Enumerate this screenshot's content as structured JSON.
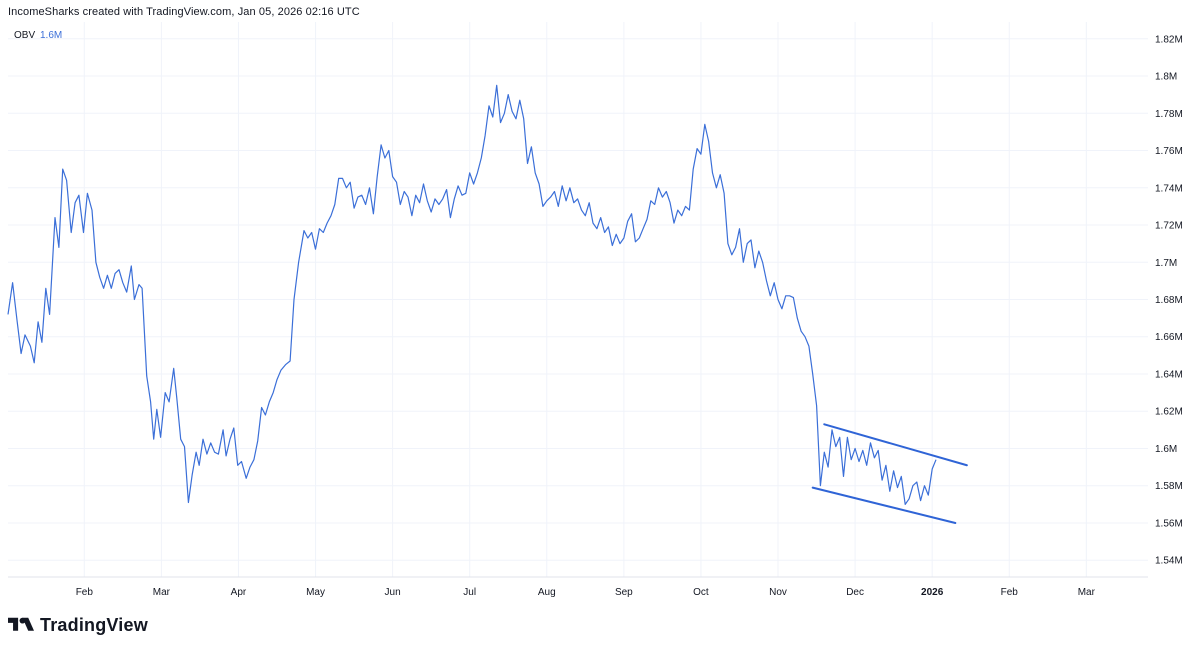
{
  "attribution": "IncomeSharks created with TradingView.com, Jan 05, 2026 02:16 UTC",
  "brand": "TradingView",
  "icons": {
    "logo": "tradingview-logo-icon"
  },
  "colors": {
    "line": "#3b6fd8",
    "trendline": "#2f64d6",
    "grid": "#f0f3fa",
    "text": "#131722",
    "legend_value": "#3b6fd8"
  },
  "chart_data": {
    "type": "line",
    "indicator": "OBV",
    "indicator_value": "1.6M",
    "y_ticks": [
      "1.54M",
      "1.56M",
      "1.58M",
      "1.6M",
      "1.62M",
      "1.64M",
      "1.66M",
      "1.68M",
      "1.7M",
      "1.72M",
      "1.74M",
      "1.76M",
      "1.78M",
      "1.8M",
      "1.82M"
    ],
    "y_tick_values": [
      1.54,
      1.56,
      1.58,
      1.6,
      1.62,
      1.64,
      1.66,
      1.68,
      1.7,
      1.72,
      1.74,
      1.76,
      1.78,
      1.8,
      1.82
    ],
    "ylim": [
      1.531,
      1.829
    ],
    "x_unit": "months since Jan 1, 2025",
    "xlim": [
      0.01,
      14.8
    ],
    "x_ticks": [
      {
        "label": "Feb",
        "pos": 1.0,
        "bold": false
      },
      {
        "label": "Mar",
        "pos": 2.0,
        "bold": false
      },
      {
        "label": "Apr",
        "pos": 3.0,
        "bold": false
      },
      {
        "label": "May",
        "pos": 4.0,
        "bold": false
      },
      {
        "label": "Jun",
        "pos": 5.0,
        "bold": false
      },
      {
        "label": "Jul",
        "pos": 6.0,
        "bold": false
      },
      {
        "label": "Aug",
        "pos": 7.0,
        "bold": false
      },
      {
        "label": "Sep",
        "pos": 8.0,
        "bold": false
      },
      {
        "label": "Oct",
        "pos": 9.0,
        "bold": false
      },
      {
        "label": "Nov",
        "pos": 10.0,
        "bold": false
      },
      {
        "label": "Dec",
        "pos": 11.0,
        "bold": false
      },
      {
        "label": "2026",
        "pos": 12.0,
        "bold": true
      },
      {
        "label": "Feb",
        "pos": 13.0,
        "bold": false
      },
      {
        "label": "Mar",
        "pos": 14.0,
        "bold": false
      }
    ],
    "series": [
      {
        "name": "OBV",
        "points": [
          [
            0.01,
            1.672
          ],
          [
            0.07,
            1.689
          ],
          [
            0.13,
            1.668
          ],
          [
            0.18,
            1.651
          ],
          [
            0.23,
            1.661
          ],
          [
            0.3,
            1.655
          ],
          [
            0.35,
            1.646
          ],
          [
            0.4,
            1.668
          ],
          [
            0.45,
            1.657
          ],
          [
            0.5,
            1.686
          ],
          [
            0.55,
            1.672
          ],
          [
            0.62,
            1.724
          ],
          [
            0.67,
            1.708
          ],
          [
            0.72,
            1.75
          ],
          [
            0.77,
            1.744
          ],
          [
            0.83,
            1.716
          ],
          [
            0.88,
            1.732
          ],
          [
            0.93,
            1.736
          ],
          [
            0.99,
            1.716
          ],
          [
            1.04,
            1.737
          ],
          [
            1.1,
            1.728
          ],
          [
            1.15,
            1.7
          ],
          [
            1.2,
            1.692
          ],
          [
            1.25,
            1.686
          ],
          [
            1.3,
            1.693
          ],
          [
            1.35,
            1.686
          ],
          [
            1.4,
            1.694
          ],
          [
            1.45,
            1.696
          ],
          [
            1.5,
            1.689
          ],
          [
            1.55,
            1.684
          ],
          [
            1.61,
            1.698
          ],
          [
            1.65,
            1.68
          ],
          [
            1.71,
            1.688
          ],
          [
            1.75,
            1.686
          ],
          [
            1.81,
            1.639
          ],
          [
            1.86,
            1.625
          ],
          [
            1.9,
            1.605
          ],
          [
            1.94,
            1.621
          ],
          [
            1.99,
            1.606
          ],
          [
            2.05,
            1.63
          ],
          [
            2.1,
            1.625
          ],
          [
            2.16,
            1.643
          ],
          [
            2.2,
            1.627
          ],
          [
            2.25,
            1.605
          ],
          [
            2.3,
            1.601
          ],
          [
            2.35,
            1.571
          ],
          [
            2.4,
            1.586
          ],
          [
            2.45,
            1.598
          ],
          [
            2.49,
            1.591
          ],
          [
            2.54,
            1.605
          ],
          [
            2.59,
            1.597
          ],
          [
            2.64,
            1.603
          ],
          [
            2.69,
            1.598
          ],
          [
            2.74,
            1.597
          ],
          [
            2.8,
            1.61
          ],
          [
            2.84,
            1.596
          ],
          [
            2.89,
            1.605
          ],
          [
            2.94,
            1.611
          ],
          [
            2.99,
            1.591
          ],
          [
            3.04,
            1.593
          ],
          [
            3.1,
            1.584
          ],
          [
            3.15,
            1.59
          ],
          [
            3.2,
            1.594
          ],
          [
            3.25,
            1.604
          ],
          [
            3.3,
            1.622
          ],
          [
            3.35,
            1.618
          ],
          [
            3.4,
            1.625
          ],
          [
            3.45,
            1.63
          ],
          [
            3.5,
            1.637
          ],
          [
            3.55,
            1.642
          ],
          [
            3.61,
            1.645
          ],
          [
            3.67,
            1.647
          ],
          [
            3.72,
            1.68
          ],
          [
            3.78,
            1.7
          ],
          [
            3.85,
            1.717
          ],
          [
            3.9,
            1.713
          ],
          [
            3.95,
            1.716
          ],
          [
            4.0,
            1.707
          ],
          [
            4.05,
            1.718
          ],
          [
            4.1,
            1.716
          ],
          [
            4.15,
            1.721
          ],
          [
            4.2,
            1.725
          ],
          [
            4.25,
            1.731
          ],
          [
            4.3,
            1.745
          ],
          [
            4.35,
            1.745
          ],
          [
            4.4,
            1.74
          ],
          [
            4.45,
            1.743
          ],
          [
            4.5,
            1.729
          ],
          [
            4.55,
            1.735
          ],
          [
            4.6,
            1.736
          ],
          [
            4.65,
            1.731
          ],
          [
            4.7,
            1.74
          ],
          [
            4.75,
            1.726
          ],
          [
            4.8,
            1.746
          ],
          [
            4.85,
            1.763
          ],
          [
            4.9,
            1.756
          ],
          [
            4.95,
            1.76
          ],
          [
            5.0,
            1.746
          ],
          [
            5.05,
            1.743
          ],
          [
            5.1,
            1.731
          ],
          [
            5.15,
            1.738
          ],
          [
            5.2,
            1.735
          ],
          [
            5.25,
            1.725
          ],
          [
            5.3,
            1.736
          ],
          [
            5.35,
            1.732
          ],
          [
            5.4,
            1.742
          ],
          [
            5.45,
            1.733
          ],
          [
            5.5,
            1.727
          ],
          [
            5.55,
            1.734
          ],
          [
            5.6,
            1.731
          ],
          [
            5.65,
            1.734
          ],
          [
            5.7,
            1.739
          ],
          [
            5.75,
            1.724
          ],
          [
            5.8,
            1.734
          ],
          [
            5.85,
            1.741
          ],
          [
            5.9,
            1.736
          ],
          [
            5.95,
            1.737
          ],
          [
            6.0,
            1.748
          ],
          [
            6.05,
            1.742
          ],
          [
            6.1,
            1.748
          ],
          [
            6.15,
            1.756
          ],
          [
            6.2,
            1.768
          ],
          [
            6.25,
            1.784
          ],
          [
            6.3,
            1.778
          ],
          [
            6.35,
            1.795
          ],
          [
            6.4,
            1.775
          ],
          [
            6.45,
            1.78
          ],
          [
            6.5,
            1.79
          ],
          [
            6.55,
            1.781
          ],
          [
            6.6,
            1.777
          ],
          [
            6.65,
            1.787
          ],
          [
            6.7,
            1.777
          ],
          [
            6.75,
            1.753
          ],
          [
            6.8,
            1.762
          ],
          [
            6.85,
            1.748
          ],
          [
            6.9,
            1.742
          ],
          [
            6.95,
            1.73
          ],
          [
            7.0,
            1.733
          ],
          [
            7.05,
            1.735
          ],
          [
            7.1,
            1.738
          ],
          [
            7.15,
            1.73
          ],
          [
            7.2,
            1.741
          ],
          [
            7.25,
            1.733
          ],
          [
            7.3,
            1.74
          ],
          [
            7.35,
            1.732
          ],
          [
            7.4,
            1.734
          ],
          [
            7.45,
            1.728
          ],
          [
            7.5,
            1.725
          ],
          [
            7.55,
            1.732
          ],
          [
            7.6,
            1.721
          ],
          [
            7.65,
            1.718
          ],
          [
            7.7,
            1.724
          ],
          [
            7.75,
            1.716
          ],
          [
            7.8,
            1.719
          ],
          [
            7.85,
            1.709
          ],
          [
            7.9,
            1.715
          ],
          [
            7.95,
            1.71
          ],
          [
            8.0,
            1.713
          ],
          [
            8.05,
            1.722
          ],
          [
            8.1,
            1.726
          ],
          [
            8.15,
            1.711
          ],
          [
            8.2,
            1.713
          ],
          [
            8.25,
            1.718
          ],
          [
            8.3,
            1.723
          ],
          [
            8.35,
            1.733
          ],
          [
            8.4,
            1.731
          ],
          [
            8.45,
            1.74
          ],
          [
            8.5,
            1.735
          ],
          [
            8.55,
            1.738
          ],
          [
            8.6,
            1.732
          ],
          [
            8.65,
            1.721
          ],
          [
            8.7,
            1.728
          ],
          [
            8.75,
            1.725
          ],
          [
            8.8,
            1.73
          ],
          [
            8.85,
            1.728
          ],
          [
            8.9,
            1.75
          ],
          [
            8.95,
            1.761
          ],
          [
            9.0,
            1.758
          ],
          [
            9.05,
            1.774
          ],
          [
            9.1,
            1.765
          ],
          [
            9.15,
            1.748
          ],
          [
            9.2,
            1.74
          ],
          [
            9.25,
            1.747
          ],
          [
            9.3,
            1.737
          ],
          [
            9.35,
            1.71
          ],
          [
            9.4,
            1.704
          ],
          [
            9.45,
            1.708
          ],
          [
            9.5,
            1.718
          ],
          [
            9.55,
            1.7
          ],
          [
            9.6,
            1.71
          ],
          [
            9.65,
            1.712
          ],
          [
            9.7,
            1.697
          ],
          [
            9.75,
            1.706
          ],
          [
            9.8,
            1.7
          ],
          [
            9.85,
            1.69
          ],
          [
            9.9,
            1.682
          ],
          [
            9.95,
            1.689
          ],
          [
            10.0,
            1.68
          ],
          [
            10.05,
            1.675
          ],
          [
            10.1,
            1.682
          ],
          [
            10.15,
            1.682
          ],
          [
            10.2,
            1.681
          ],
          [
            10.25,
            1.67
          ],
          [
            10.3,
            1.663
          ],
          [
            10.35,
            1.66
          ],
          [
            10.4,
            1.655
          ],
          [
            10.45,
            1.64
          ],
          [
            10.5,
            1.623
          ],
          [
            10.55,
            1.58
          ],
          [
            10.6,
            1.598
          ],
          [
            10.65,
            1.59
          ],
          [
            10.7,
            1.61
          ],
          [
            10.75,
            1.601
          ],
          [
            10.8,
            1.606
          ],
          [
            10.85,
            1.585
          ],
          [
            10.9,
            1.606
          ],
          [
            10.95,
            1.594
          ],
          [
            11.0,
            1.6
          ],
          [
            11.05,
            1.593
          ],
          [
            11.1,
            1.599
          ],
          [
            11.15,
            1.591
          ],
          [
            11.2,
            1.603
          ],
          [
            11.25,
            1.595
          ],
          [
            11.3,
            1.599
          ],
          [
            11.35,
            1.583
          ],
          [
            11.4,
            1.591
          ],
          [
            11.45,
            1.577
          ],
          [
            11.5,
            1.588
          ],
          [
            11.55,
            1.579
          ],
          [
            11.6,
            1.585
          ],
          [
            11.65,
            1.57
          ],
          [
            11.7,
            1.573
          ],
          [
            11.75,
            1.58
          ],
          [
            11.8,
            1.582
          ],
          [
            11.85,
            1.572
          ],
          [
            11.9,
            1.58
          ],
          [
            11.95,
            1.575
          ],
          [
            12.0,
            1.589
          ],
          [
            12.05,
            1.594
          ]
        ]
      }
    ],
    "trendlines": [
      {
        "points": [
          [
            10.6,
            1.613
          ],
          [
            12.45,
            1.591
          ]
        ]
      },
      {
        "points": [
          [
            10.45,
            1.579
          ],
          [
            12.3,
            1.56
          ]
        ]
      }
    ]
  }
}
